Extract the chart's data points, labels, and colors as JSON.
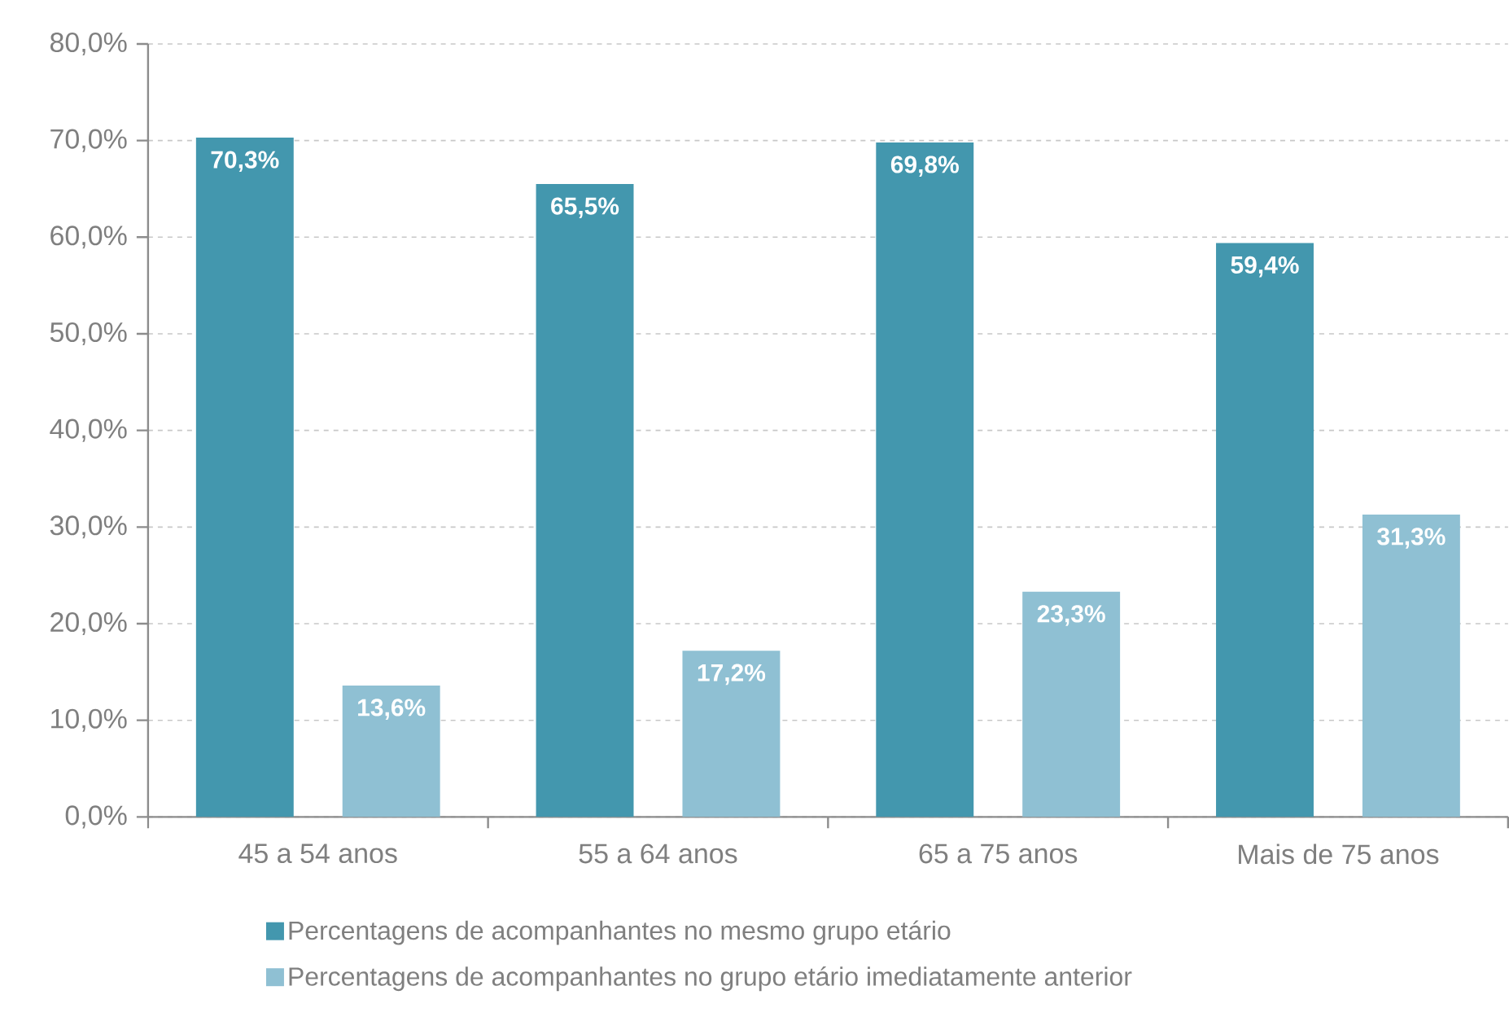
{
  "chart_data": {
    "type": "bar",
    "categories": [
      "45 a 54 anos",
      "55 a 64 anos",
      "65 a 75 anos",
      "Mais de 75 anos"
    ],
    "series": [
      {
        "name": "Percentagens de acompanhantes no mesmo grupo etário",
        "color": "#4397ae",
        "values": [
          70.3,
          65.5,
          69.8,
          59.4
        ],
        "value_labels": [
          "70,3%",
          "65,5%",
          "69,8%",
          "59,4%"
        ]
      },
      {
        "name": "Percentagens de acompanhantes no grupo etário imediatamente anterior",
        "color": "#8fc0d3",
        "values": [
          13.6,
          17.2,
          23.3,
          31.3
        ],
        "value_labels": [
          "13,6%",
          "17,2%",
          "23,3%",
          "31,3%"
        ]
      }
    ],
    "ylim": [
      0,
      80
    ],
    "yticks": [
      {
        "value": 0,
        "label": "0,0%"
      },
      {
        "value": 10,
        "label": "10,0%"
      },
      {
        "value": 20,
        "label": "20,0%"
      },
      {
        "value": 30,
        "label": "30,0%"
      },
      {
        "value": 40,
        "label": "40,0%"
      },
      {
        "value": 50,
        "label": "50,0%"
      },
      {
        "value": 60,
        "label": "60,0%"
      },
      {
        "value": 70,
        "label": "70,0%"
      },
      {
        "value": 80,
        "label": "80,0%"
      }
    ],
    "grid": "y",
    "legend": "bottom"
  }
}
